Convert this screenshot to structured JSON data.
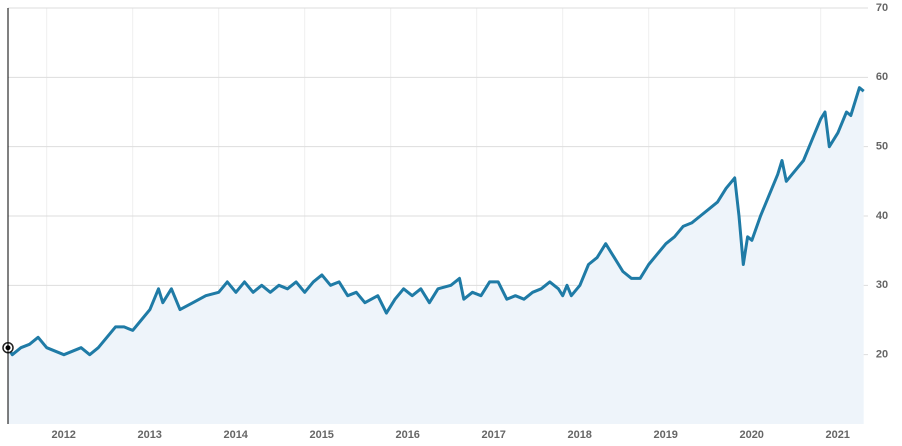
{
  "chart_data": {
    "type": "line",
    "x": [
      2011.55,
      2011.6,
      2011.7,
      2011.8,
      2011.9,
      2012.0,
      2012.1,
      2012.2,
      2012.3,
      2012.4,
      2012.5,
      2012.6,
      2012.7,
      2012.8,
      2012.9,
      2013.0,
      2013.1,
      2013.2,
      2013.3,
      2013.35,
      2013.45,
      2013.55,
      2013.7,
      2013.85,
      2014.0,
      2014.1,
      2014.2,
      2014.3,
      2014.4,
      2014.5,
      2014.6,
      2014.7,
      2014.8,
      2014.9,
      2015.0,
      2015.1,
      2015.2,
      2015.3,
      2015.4,
      2015.5,
      2015.6,
      2015.7,
      2015.85,
      2015.95,
      2016.05,
      2016.15,
      2016.25,
      2016.35,
      2016.45,
      2016.55,
      2016.7,
      2016.8,
      2016.85,
      2016.95,
      2017.05,
      2017.15,
      2017.25,
      2017.35,
      2017.45,
      2017.55,
      2017.65,
      2017.75,
      2017.85,
      2017.95,
      2018.0,
      2018.05,
      2018.1,
      2018.2,
      2018.3,
      2018.4,
      2018.5,
      2018.6,
      2018.7,
      2018.8,
      2018.9,
      2019.0,
      2019.1,
      2019.2,
      2019.3,
      2019.4,
      2019.5,
      2019.6,
      2019.7,
      2019.8,
      2019.9,
      2020.0,
      2020.05,
      2020.1,
      2020.15,
      2020.2,
      2020.3,
      2020.4,
      2020.5,
      2020.55,
      2020.6,
      2020.7,
      2020.8,
      2020.9,
      2021.0,
      2021.05,
      2021.1,
      2021.2,
      2021.3,
      2021.35,
      2021.45,
      2021.5
    ],
    "series": [
      {
        "color": "#1f7ba6",
        "values": [
          21,
          20,
          21,
          21.5,
          22.5,
          21,
          20.5,
          20,
          20.5,
          21,
          20,
          21,
          22.5,
          24,
          24,
          23.5,
          25,
          26.5,
          29.5,
          27.5,
          29.5,
          26.5,
          27.5,
          28.5,
          29,
          30.5,
          29,
          30.5,
          29,
          30,
          29,
          30,
          29.5,
          30.5,
          29,
          30.5,
          31.5,
          30,
          30.5,
          28.5,
          29,
          27.5,
          28.5,
          26,
          28,
          29.5,
          28.5,
          29.5,
          27.5,
          29.5,
          30,
          31,
          28,
          29,
          28.5,
          30.5,
          30.5,
          28,
          28.5,
          28,
          29,
          29.5,
          30.5,
          29.5,
          28.5,
          30,
          28.5,
          30,
          33,
          34,
          36,
          34,
          32,
          31,
          31,
          33,
          34.5,
          36,
          37,
          38.5,
          39,
          40,
          41,
          42,
          44,
          45.5,
          40,
          33,
          37,
          36.5,
          40,
          43,
          46,
          48,
          45,
          46.5,
          48,
          51,
          54,
          55,
          50,
          52,
          55,
          54.5,
          58.5,
          58
        ]
      }
    ],
    "xlim": [
      2011.55,
      2021.55
    ],
    "xticks": [
      2012,
      2013,
      2014,
      2015,
      2016,
      2017,
      2018,
      2019,
      2020,
      2021
    ],
    "ylim": [
      10,
      70
    ],
    "yticks": [
      20,
      30,
      40,
      50,
      60,
      70
    ],
    "grid": true
  }
}
